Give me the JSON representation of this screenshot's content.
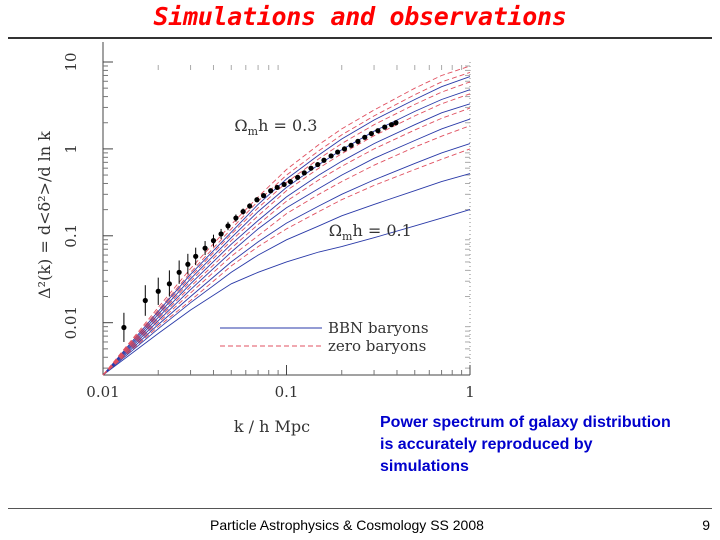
{
  "slide": {
    "title": "Simulations and observations",
    "caption": "Power spectrum of galaxy distribution is accurately reproduced by simulations",
    "footer": "Particle Astrophysics & Cosmology SS 2008",
    "page_number": "9"
  },
  "colors": {
    "title": "#ff0000",
    "caption": "#0000cc",
    "baryon_curves": "#2a3aa8",
    "zero_baryon_curves": "#e05060",
    "data_points": "#000000"
  },
  "chart_data": {
    "type": "line",
    "scale": "log-log",
    "xlabel": "k / h Mpc",
    "ylabel": "Δ²(k) = d<δ²>/d ln k",
    "xlim": [
      0.01,
      1
    ],
    "ylim": [
      0.0025,
      10
    ],
    "x_ticks": [
      "0.01",
      "0.1",
      "1"
    ],
    "y_ticks": [
      "0.01",
      "0.1",
      "1",
      "10"
    ],
    "annotations": [
      {
        "text": "Ωmh = 0.3",
        "x": 0.052,
        "y": 1.6
      },
      {
        "text": "Ωmh = 0.1",
        "x": 0.17,
        "y": 0.1
      }
    ],
    "legend": {
      "placement": "bottom-right",
      "entries": [
        {
          "label": "BBN baryons",
          "style": "solid"
        },
        {
          "label": "zero baryons",
          "style": "dashed"
        }
      ]
    },
    "series": [
      {
        "style": "solid",
        "omh": 0.1,
        "x": [
          0.01,
          0.02,
          0.03,
          0.05,
          0.07,
          0.1,
          0.15,
          0.2,
          0.3,
          0.5,
          0.7,
          1.0
        ],
        "y": [
          0.0025,
          0.0075,
          0.014,
          0.028,
          0.038,
          0.05,
          0.065,
          0.075,
          0.095,
          0.13,
          0.16,
          0.2
        ]
      },
      {
        "style": "solid",
        "omh": 0.13,
        "x": [
          0.01,
          0.02,
          0.03,
          0.05,
          0.07,
          0.1,
          0.15,
          0.2,
          0.3,
          0.5,
          0.7,
          1.0
        ],
        "y": [
          0.0025,
          0.0085,
          0.017,
          0.038,
          0.06,
          0.09,
          0.13,
          0.17,
          0.23,
          0.33,
          0.42,
          0.52
        ]
      },
      {
        "style": "solid",
        "omh": 0.17,
        "x": [
          0.01,
          0.02,
          0.03,
          0.05,
          0.07,
          0.1,
          0.15,
          0.2,
          0.3,
          0.5,
          0.7,
          1.0
        ],
        "y": [
          0.0025,
          0.0095,
          0.02,
          0.05,
          0.085,
          0.14,
          0.22,
          0.3,
          0.44,
          0.68,
          0.9,
          1.15
        ]
      },
      {
        "style": "solid",
        "omh": 0.2,
        "x": [
          0.01,
          0.02,
          0.03,
          0.05,
          0.07,
          0.1,
          0.15,
          0.2,
          0.3,
          0.5,
          0.7,
          1.0
        ],
        "y": [
          0.0025,
          0.0105,
          0.024,
          0.065,
          0.12,
          0.21,
          0.35,
          0.5,
          0.78,
          1.25,
          1.7,
          2.2
        ]
      },
      {
        "style": "solid",
        "omh": 0.23,
        "x": [
          0.01,
          0.02,
          0.03,
          0.05,
          0.07,
          0.1,
          0.15,
          0.2,
          0.3,
          0.5,
          0.7,
          1.0
        ],
        "y": [
          0.0025,
          0.0115,
          0.028,
          0.08,
          0.15,
          0.28,
          0.5,
          0.72,
          1.15,
          1.9,
          2.6,
          3.3
        ]
      },
      {
        "style": "solid",
        "omh": 0.27,
        "x": [
          0.01,
          0.02,
          0.03,
          0.05,
          0.07,
          0.1,
          0.15,
          0.2,
          0.3,
          0.5,
          0.7,
          1.0
        ],
        "y": [
          0.0025,
          0.0125,
          0.032,
          0.095,
          0.19,
          0.36,
          0.66,
          0.98,
          1.6,
          2.7,
          3.7,
          4.8
        ]
      },
      {
        "style": "solid",
        "omh": 0.3,
        "x": [
          0.01,
          0.02,
          0.03,
          0.05,
          0.07,
          0.1,
          0.15,
          0.2,
          0.3,
          0.5,
          0.7,
          1.0
        ],
        "y": [
          0.0025,
          0.0135,
          0.036,
          0.11,
          0.23,
          0.45,
          0.85,
          1.3,
          2.15,
          3.7,
          5.2,
          6.8
        ]
      },
      {
        "style": "dashed",
        "omh": 0.1,
        "x": [
          0.01,
          0.02,
          0.03,
          0.05,
          0.07,
          0.1,
          0.15,
          0.2,
          0.3,
          0.5,
          0.7,
          1.0
        ],
        "y": [
          0.0025,
          0.009,
          0.018,
          0.045,
          0.075,
          0.12,
          0.19,
          0.26,
          0.38,
          0.58,
          0.76,
          1.0
        ]
      },
      {
        "style": "dashed",
        "omh": 0.13,
        "x": [
          0.01,
          0.02,
          0.03,
          0.05,
          0.07,
          0.1,
          0.15,
          0.2,
          0.3,
          0.5,
          0.7,
          1.0
        ],
        "y": [
          0.0025,
          0.01,
          0.022,
          0.058,
          0.1,
          0.18,
          0.3,
          0.42,
          0.65,
          1.05,
          1.4,
          1.85
        ]
      },
      {
        "style": "dashed",
        "omh": 0.17,
        "x": [
          0.01,
          0.02,
          0.03,
          0.05,
          0.07,
          0.1,
          0.15,
          0.2,
          0.3,
          0.5,
          0.7,
          1.0
        ],
        "y": [
          0.0025,
          0.011,
          0.026,
          0.072,
          0.135,
          0.25,
          0.44,
          0.63,
          1.0,
          1.65,
          2.25,
          2.95
        ]
      },
      {
        "style": "dashed",
        "omh": 0.2,
        "x": [
          0.01,
          0.02,
          0.03,
          0.05,
          0.07,
          0.1,
          0.15,
          0.2,
          0.3,
          0.5,
          0.7,
          1.0
        ],
        "y": [
          0.0025,
          0.012,
          0.03,
          0.088,
          0.17,
          0.33,
          0.6,
          0.88,
          1.42,
          2.4,
          3.3,
          4.3
        ]
      },
      {
        "style": "dashed",
        "omh": 0.23,
        "x": [
          0.01,
          0.02,
          0.03,
          0.05,
          0.07,
          0.1,
          0.15,
          0.2,
          0.3,
          0.5,
          0.7,
          1.0
        ],
        "y": [
          0.0025,
          0.013,
          0.034,
          0.104,
          0.21,
          0.41,
          0.77,
          1.15,
          1.9,
          3.25,
          4.5,
          5.9
        ]
      },
      {
        "style": "dashed",
        "omh": 0.27,
        "x": [
          0.01,
          0.02,
          0.03,
          0.05,
          0.07,
          0.1,
          0.15,
          0.2,
          0.3,
          0.5,
          0.7,
          1.0
        ],
        "y": [
          0.0025,
          0.014,
          0.038,
          0.12,
          0.25,
          0.5,
          0.95,
          1.45,
          2.4,
          4.2,
          5.9,
          7.6
        ]
      },
      {
        "style": "dashed",
        "omh": 0.3,
        "x": [
          0.01,
          0.02,
          0.03,
          0.05,
          0.07,
          0.1,
          0.15,
          0.2,
          0.3,
          0.5,
          0.7,
          1.0
        ],
        "y": [
          0.0025,
          0.015,
          0.042,
          0.135,
          0.28,
          0.58,
          1.12,
          1.7,
          2.8,
          5.0,
          7.0,
          9.0
        ]
      }
    ],
    "data_points": {
      "x": [
        0.013,
        0.017,
        0.02,
        0.023,
        0.026,
        0.029,
        0.032,
        0.036,
        0.04,
        0.044,
        0.048,
        0.053,
        0.058,
        0.063,
        0.069,
        0.075,
        0.082,
        0.089,
        0.097,
        0.105,
        0.115,
        0.125,
        0.136,
        0.148,
        0.16,
        0.175,
        0.19,
        0.207,
        0.225,
        0.245,
        0.267,
        0.29,
        0.315,
        0.343,
        0.373,
        0.395
      ],
      "y": [
        0.0088,
        0.018,
        0.023,
        0.028,
        0.038,
        0.047,
        0.058,
        0.072,
        0.088,
        0.105,
        0.13,
        0.16,
        0.19,
        0.22,
        0.26,
        0.29,
        0.33,
        0.36,
        0.39,
        0.42,
        0.47,
        0.53,
        0.6,
        0.66,
        0.74,
        0.83,
        0.92,
        1.0,
        1.1,
        1.22,
        1.36,
        1.5,
        1.62,
        1.78,
        1.9,
        2.0
      ],
      "err_low": [
        0.006,
        0.012,
        0.016,
        0.02,
        0.028,
        0.036,
        0.046,
        0.06,
        0.075,
        0.092,
        0.116,
        0.145,
        0.175,
        0.205,
        0.245,
        0.275,
        0.315,
        0.345,
        0.375,
        0.405,
        0.455,
        0.515,
        0.585,
        0.645,
        0.725,
        0.815,
        0.9,
        0.98,
        1.08,
        1.2,
        1.34,
        1.47,
        1.59,
        1.75,
        1.86,
        1.96
      ],
      "err_high": [
        0.013,
        0.027,
        0.033,
        0.04,
        0.052,
        0.062,
        0.073,
        0.087,
        0.103,
        0.12,
        0.145,
        0.176,
        0.206,
        0.236,
        0.276,
        0.306,
        0.346,
        0.376,
        0.406,
        0.436,
        0.486,
        0.546,
        0.616,
        0.676,
        0.756,
        0.846,
        0.94,
        1.02,
        1.12,
        1.24,
        1.38,
        1.53,
        1.65,
        1.81,
        1.94,
        2.04
      ]
    }
  }
}
